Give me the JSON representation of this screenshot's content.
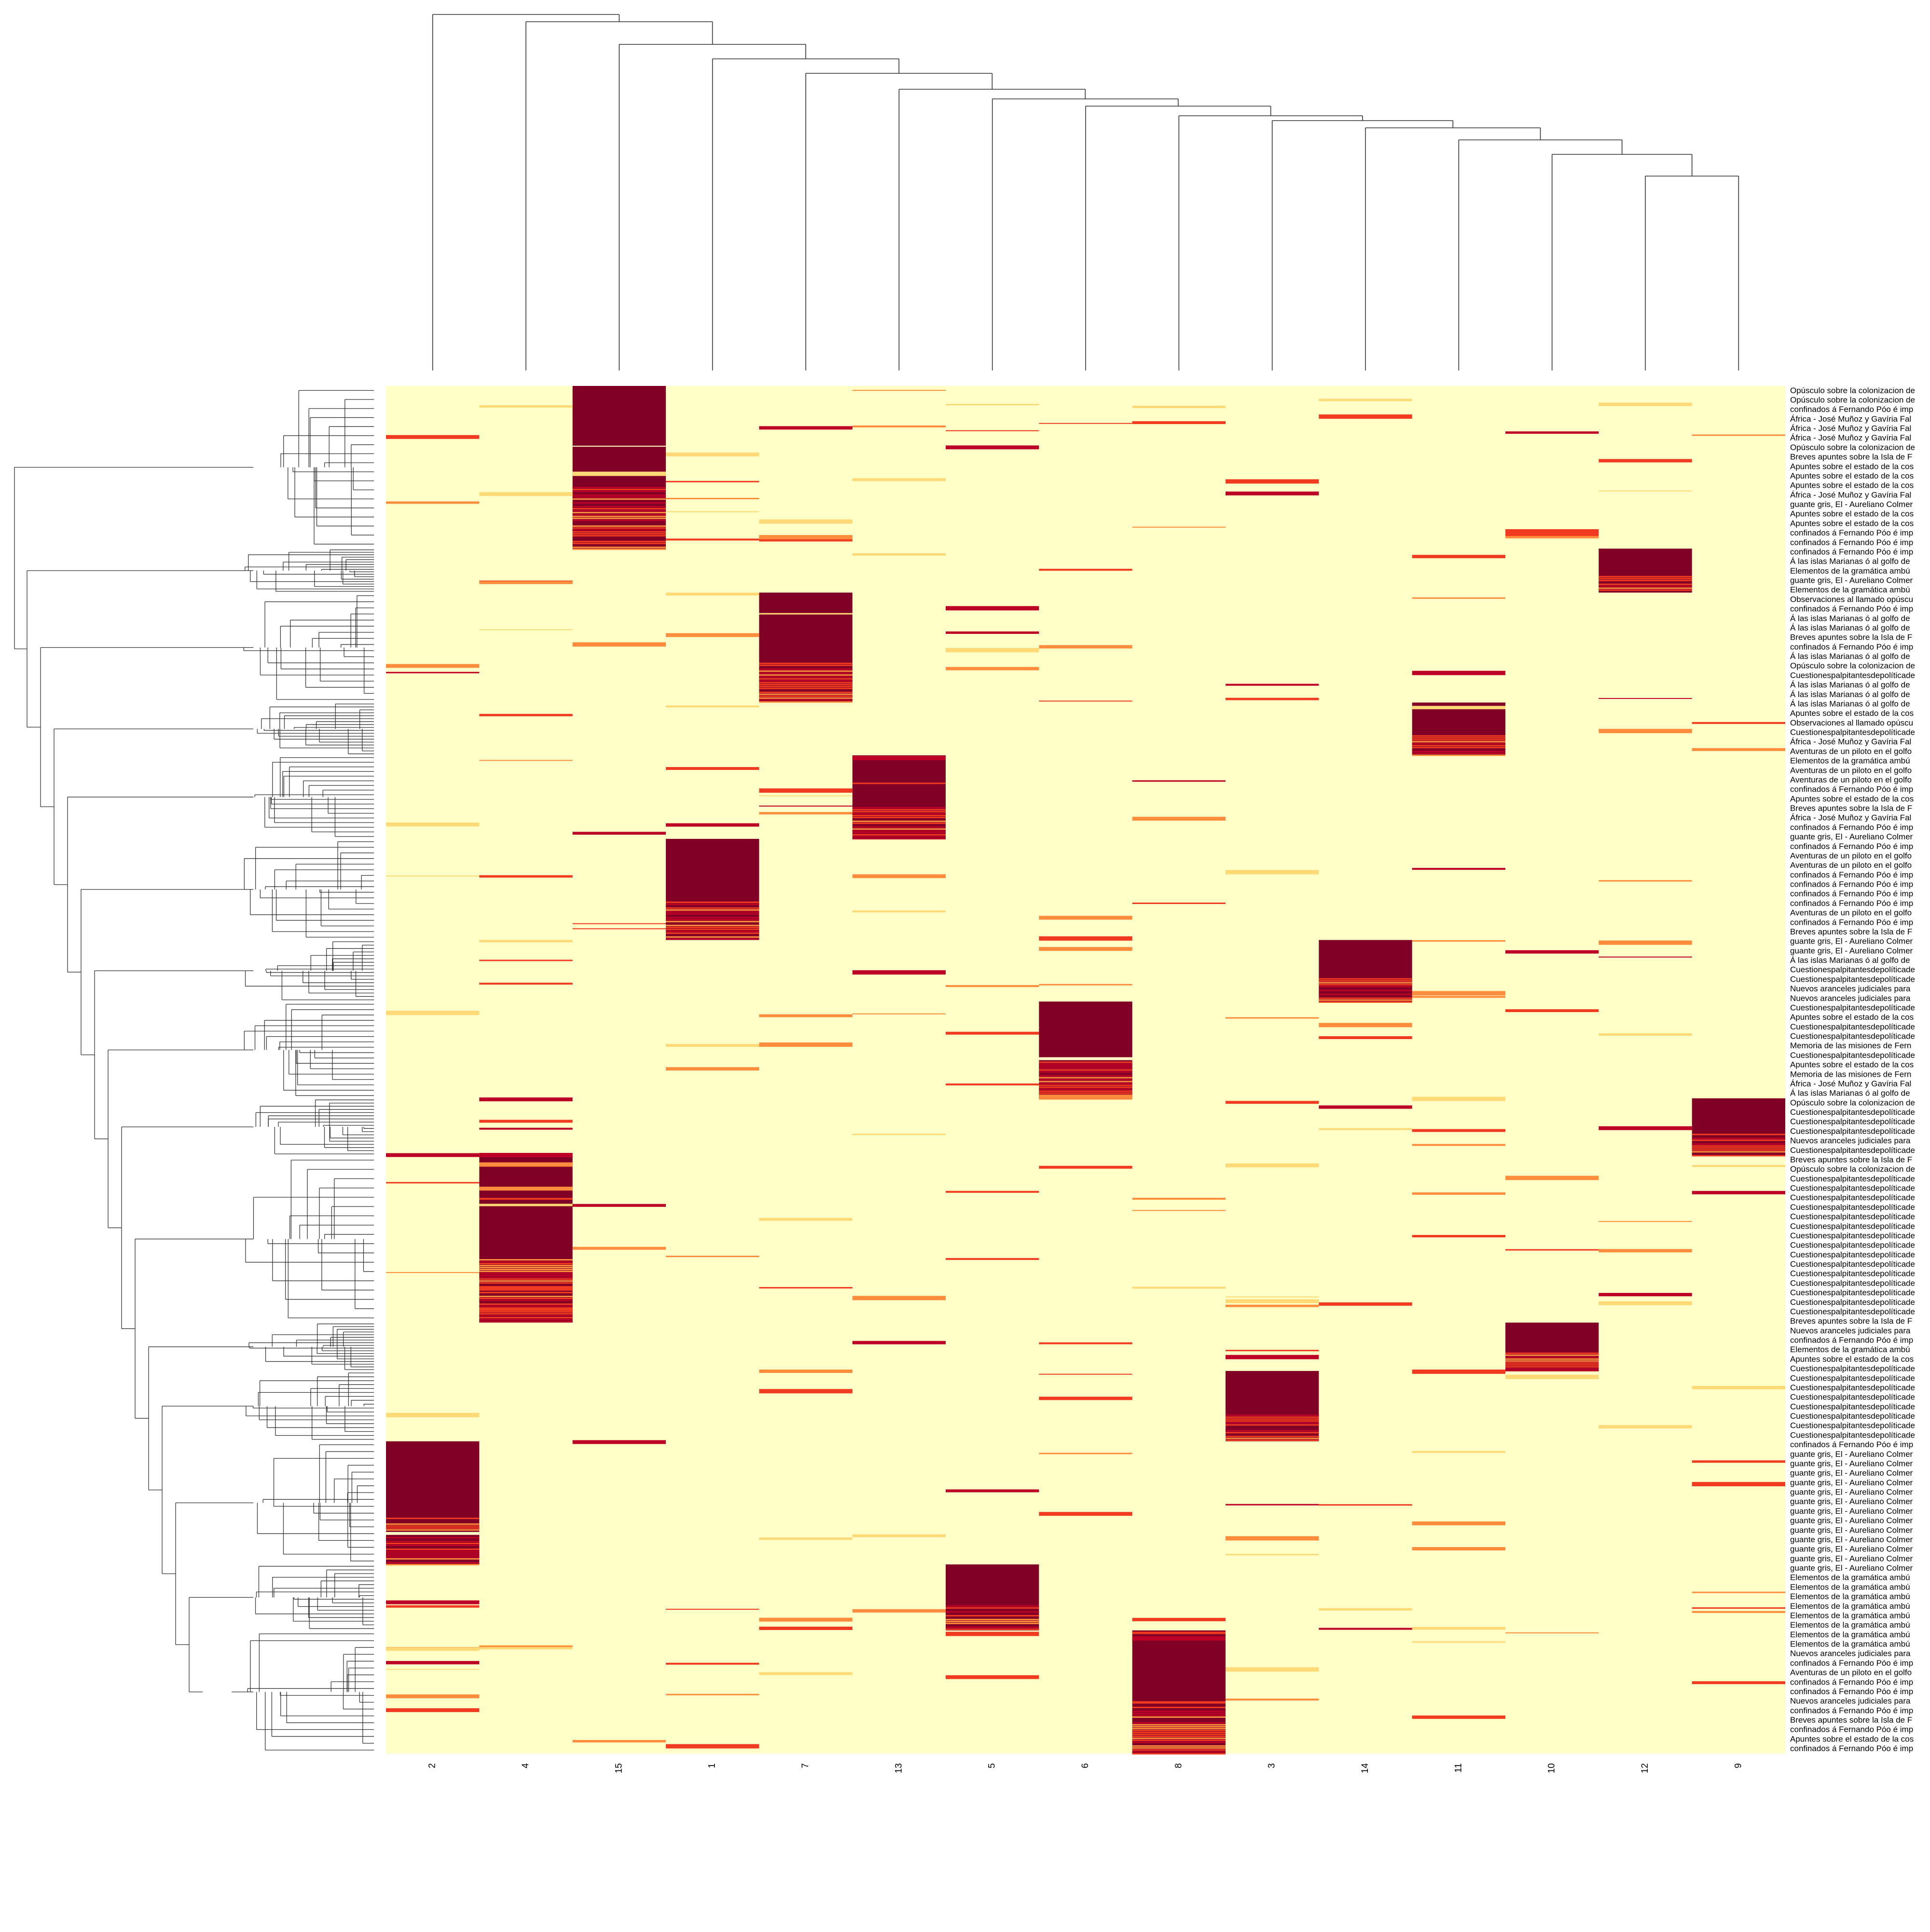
{
  "colors": {
    "low": "#ffffc8",
    "mid1": "#fed976",
    "mid2": "#fd8d3c",
    "mid3": "#f03b20",
    "mid4": "#bd0026",
    "high": "#800026",
    "tree": "#333333"
  },
  "chart_data": {
    "type": "heatmap",
    "title": "",
    "xlabel": "",
    "ylabel": "",
    "columns": [
      "2",
      "4",
      "15",
      "1",
      "7",
      "13",
      "5",
      "6",
      "8",
      "3",
      "14",
      "11",
      "10",
      "12",
      "9"
    ],
    "row_count": 440,
    "value_range": [
      0,
      1
    ],
    "color_scale": "heat (light yellow low to dark red high)",
    "row_labels_visible": [
      "Opúsculo sobre la colonizacion de",
      "Opúsculo sobre la colonizacion de",
      "confinados á Fernando Póo é imp",
      "África - José Muñoz y Gavíria Fal",
      "África - José Muñoz y Gavíria Fal",
      "África - José Muñoz y Gavíria Fal",
      "Opúsculo sobre la colonizacion de",
      "Breves apuntes sobre la Isla de F",
      "Apuntes sobre el estado de la cos",
      "Apuntes sobre el estado de la cos",
      "Apuntes sobre el estado de la cos",
      "África - José Muñoz y Gavíria Fal",
      "guante gris, El - Aureliano Colmer",
      "Apuntes sobre el estado de la cos",
      "Apuntes sobre el estado de la cos",
      "confinados á Fernando Póo é imp",
      "confinados á Fernando Póo é imp",
      "confinados á Fernando Póo é imp",
      "Á las islas Marianas ó al golfo de",
      "Elementos de la gramática ambú",
      "guante gris, El - Aureliano Colmer",
      "Elementos de la gramática ambú",
      "Observaciones al llamado opúscu",
      "confinados á Fernando Póo é imp",
      "Á las islas Marianas ó al golfo de",
      "Á las islas Marianas ó al golfo de",
      "Breves apuntes sobre la Isla de F",
      "confinados á Fernando Póo é imp",
      "Á las islas Marianas ó al golfo de",
      "Opúsculo sobre la colonizacion de",
      "Cuestionespalpitantesdepolíticade",
      "Á las islas Marianas ó al golfo de",
      "Á las islas Marianas ó al golfo de",
      "Á las islas Marianas ó al golfo de",
      "Apuntes sobre el estado de la cos",
      "Observaciones al llamado opúscu",
      "Cuestionespalpitantesdepolíticade",
      "África - José Muñoz y Gavíria Fal",
      "Aventuras de un piloto en el golfo",
      "Elementos de la gramática ambú",
      "Aventuras de un piloto en el golfo",
      "Aventuras de un piloto en el golfo",
      "confinados á Fernando Póo é imp",
      "Apuntes sobre el estado de la cos",
      "Breves apuntes sobre la Isla de F",
      "África - José Muñoz y Gavíria Fal",
      "confinados á Fernando Póo é imp",
      "guante gris, El - Aureliano Colmer",
      "confinados á Fernando Póo é imp",
      "Aventuras de un piloto en el golfo",
      "Aventuras de un piloto en el golfo",
      "confinados á Fernando Póo é imp",
      "confinados á Fernando Póo é imp",
      "confinados á Fernando Póo é imp",
      "confinados á Fernando Póo é imp",
      "Aventuras de un piloto en el golfo",
      "confinados á Fernando Póo é imp",
      "Breves apuntes sobre la Isla de F",
      "guante gris, El - Aureliano Colmer",
      "guante gris, El - Aureliano Colmer",
      "Á las islas Marianas ó al golfo de",
      "Cuestionespalpitantesdepolíticade",
      "Cuestionespalpitantesdepolíticade",
      "Nuevos aranceles judiciales para",
      "Nuevos aranceles judiciales para",
      "Cuestionespalpitantesdepolíticade",
      "Apuntes sobre el estado de la cos",
      "Cuestionespalpitantesdepolíticade",
      "Cuestionespalpitantesdepolíticade",
      "Memoria de las misiones de Fern",
      "Cuestionespalpitantesdepolíticade",
      "Apuntes sobre el estado de la cos",
      "Memoria de las misiones de Fern",
      "África - José Muñoz y Gavíria Fal",
      "Á las islas Marianas ó al golfo de",
      "Opúsculo sobre la colonizacion de",
      "Cuestionespalpitantesdepolíticade",
      "Cuestionespalpitantesdepolíticade",
      "Cuestionespalpitantesdepolíticade",
      "Nuevos aranceles judiciales para",
      "Cuestionespalpitantesdepolíticade",
      "Breves apuntes sobre la Isla de F",
      "Opúsculo sobre la colonizacion de",
      "Cuestionespalpitantesdepolíticade",
      "Cuestionespalpitantesdepolíticade",
      "Cuestionespalpitantesdepolíticade",
      "Cuestionespalpitantesdepolíticade",
      "Cuestionespalpitantesdepolíticade",
      "Cuestionespalpitantesdepolíticade",
      "Cuestionespalpitantesdepolíticade",
      "Cuestionespalpitantesdepolíticade",
      "Cuestionespalpitantesdepolíticade",
      "Cuestionespalpitantesdepolíticade",
      "Cuestionespalpitantesdepolíticade",
      "Cuestionespalpitantesdepolíticade",
      "Cuestionespalpitantesdepolíticade",
      "Cuestionespalpitantesdepolíticade",
      "Cuestionespalpitantesdepolíticade",
      "Breves apuntes sobre la Isla de F",
      "Nuevos aranceles judiciales para",
      "confinados á Fernando Póo é imp",
      "Elementos de la gramática ambú",
      "Apuntes sobre el estado de la cos",
      "Cuestionespalpitantesdepolíticade",
      "Cuestionespalpitantesdepolíticade",
      "Cuestionespalpitantesdepolíticade",
      "Cuestionespalpitantesdepolíticade",
      "Cuestionespalpitantesdepolíticade",
      "Cuestionespalpitantesdepolíticade",
      "Cuestionespalpitantesdepolíticade",
      "Cuestionespalpitantesdepolíticade",
      "confinados á Fernando Póo é imp",
      "guante gris, El - Aureliano Colmer",
      "guante gris, El - Aureliano Colmer",
      "guante gris, El - Aureliano Colmer",
      "guante gris, El - Aureliano Colmer",
      "guante gris, El - Aureliano Colmer",
      "guante gris, El - Aureliano Colmer",
      "guante gris, El - Aureliano Colmer",
      "guante gris, El - Aureliano Colmer",
      "guante gris, El - Aureliano Colmer",
      "guante gris, El - Aureliano Colmer",
      "guante gris, El - Aureliano Colmer",
      "guante gris, El - Aureliano Colmer",
      "guante gris, El - Aureliano Colmer",
      "Elementos de la gramática ambú",
      "Elementos de la gramática ambú",
      "Elementos de la gramática ambú",
      "Elementos de la gramática ambú",
      "Elementos de la gramática ambú",
      "Elementos de la gramática ambú",
      "Elementos de la gramática ambú",
      "Elementos de la gramática ambú",
      "Nuevos aranceles judiciales para",
      "confinados á Fernando Póo é imp",
      "Aventuras de un piloto en el golfo",
      "confinados á Fernando Póo é imp",
      "confinados á Fernando Póo é imp",
      "Nuevos aranceles judiciales para",
      "confinados á Fernando Póo é imp",
      "Breves apuntes sobre la Isla de F",
      "confinados á Fernando Póo é imp",
      "Apuntes sobre el estado de la cos",
      "confinados á Fernando Póo é imp"
    ],
    "clusters": [
      {
        "column": "15",
        "rows_start": 0,
        "rows_end": 37
      },
      {
        "column": "12",
        "rows_start": 37,
        "rows_end": 47
      },
      {
        "column": "7",
        "rows_start": 47,
        "rows_end": 72
      },
      {
        "column": "11",
        "rows_start": 72,
        "rows_end": 84
      },
      {
        "column": "13",
        "rows_start": 84,
        "rows_end": 103
      },
      {
        "column": "1",
        "rows_start": 103,
        "rows_end": 126
      },
      {
        "column": "14",
        "rows_start": 126,
        "rows_end": 140
      },
      {
        "column": "6",
        "rows_start": 140,
        "rows_end": 162
      },
      {
        "column": "9",
        "rows_start": 162,
        "rows_end": 175
      },
      {
        "column": "4",
        "rows_start": 175,
        "rows_end": 213
      },
      {
        "column": "10",
        "rows_start": 213,
        "rows_end": 224
      },
      {
        "column": "3",
        "rows_start": 224,
        "rows_end": 240
      },
      {
        "column": "2",
        "rows_start": 240,
        "rows_end": 268
      },
      {
        "column": "5",
        "rows_start": 268,
        "rows_end": 283
      },
      {
        "column": "8",
        "rows_start": 283,
        "rows_end": 311
      }
    ],
    "column_dendrogram_merge_order": [
      "12+9",
      "10+(12,9)",
      "11",
      "14",
      "3",
      "8",
      "6",
      "5",
      "13",
      "7",
      "1",
      "15",
      "4",
      "2"
    ],
    "grid": false,
    "legend": "none"
  }
}
